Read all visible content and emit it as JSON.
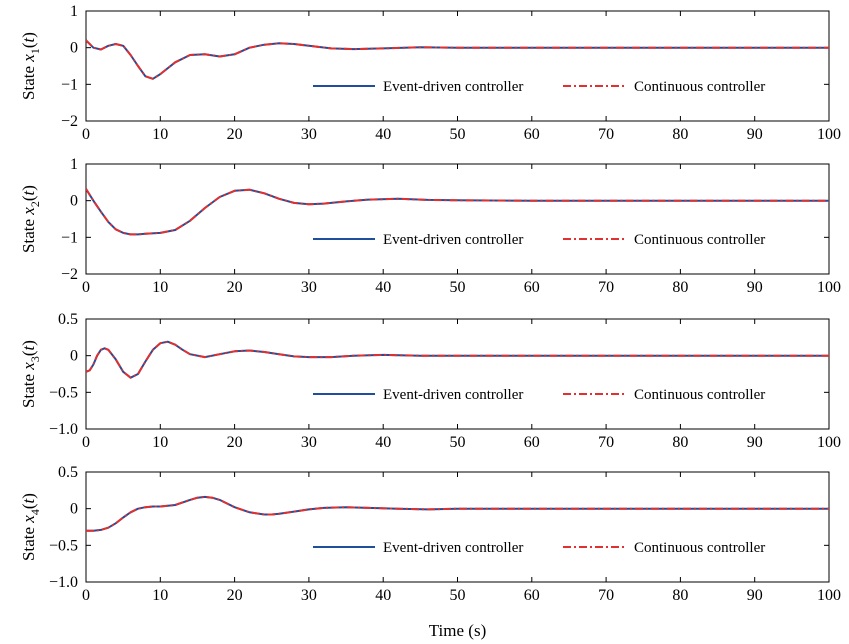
{
  "chart_data": [
    {
      "type": "line",
      "ylabel_prefix": "State ",
      "ylabel_var": "x",
      "ylabel_sub": "1",
      "ylabel_suffix": "(t)",
      "xlim": [
        0,
        100
      ],
      "ylim": [
        -2,
        1
      ],
      "xticks": [
        0,
        10,
        20,
        30,
        40,
        50,
        60,
        70,
        80,
        90,
        100
      ],
      "yticks": [
        -2,
        -1,
        0,
        1
      ],
      "ytick_labels": [
        "−2",
        "−1",
        "0",
        "1"
      ],
      "legend_position": "center-right",
      "series": [
        {
          "name": "Event-driven controller",
          "color": "#1f4e9c",
          "style": "solid",
          "x": [
            0,
            1,
            2,
            3,
            4,
            5,
            6,
            7,
            8,
            9,
            10,
            12,
            14,
            16,
            18,
            20,
            22,
            24,
            26,
            28,
            30,
            33,
            36,
            40,
            45,
            50,
            60,
            70,
            80,
            90,
            100
          ],
          "y": [
            0.2,
            0.0,
            -0.05,
            0.05,
            0.1,
            0.05,
            -0.2,
            -0.5,
            -0.78,
            -0.85,
            -0.72,
            -0.4,
            -0.2,
            -0.18,
            -0.24,
            -0.18,
            0.0,
            0.08,
            0.12,
            0.1,
            0.05,
            -0.02,
            -0.04,
            -0.02,
            0.01,
            0.0,
            0.0,
            0.0,
            0.0,
            0.0,
            0.0
          ]
        },
        {
          "name": "Continuous controller",
          "color": "#e03030",
          "style": "dashdot",
          "x": [
            0,
            1,
            2,
            3,
            4,
            5,
            6,
            7,
            8,
            9,
            10,
            12,
            14,
            16,
            18,
            20,
            22,
            24,
            26,
            28,
            30,
            33,
            36,
            40,
            45,
            50,
            60,
            70,
            80,
            90,
            100
          ],
          "y": [
            0.2,
            0.0,
            -0.05,
            0.05,
            0.1,
            0.05,
            -0.2,
            -0.5,
            -0.78,
            -0.85,
            -0.72,
            -0.4,
            -0.2,
            -0.18,
            -0.24,
            -0.18,
            0.0,
            0.08,
            0.12,
            0.1,
            0.05,
            -0.02,
            -0.04,
            -0.02,
            0.01,
            0.0,
            0.0,
            0.0,
            0.0,
            0.0,
            0.0
          ]
        }
      ]
    },
    {
      "type": "line",
      "ylabel_prefix": "State ",
      "ylabel_var": "x",
      "ylabel_sub": "2",
      "ylabel_suffix": "(t)",
      "xlim": [
        0,
        100
      ],
      "ylim": [
        -2,
        1
      ],
      "xticks": [
        0,
        10,
        20,
        30,
        40,
        50,
        60,
        70,
        80,
        90,
        100
      ],
      "yticks": [
        -2,
        -1,
        0,
        1
      ],
      "ytick_labels": [
        "−2",
        "−1",
        "0",
        "1"
      ],
      "legend_position": "bottom-right",
      "series": [
        {
          "name": "Event-driven controller",
          "color": "#1f4e9c",
          "style": "solid",
          "x": [
            0,
            1,
            2,
            3,
            4,
            5,
            6,
            7,
            8,
            10,
            12,
            14,
            16,
            18,
            20,
            22,
            24,
            26,
            28,
            30,
            32,
            35,
            38,
            42,
            46,
            50,
            60,
            70,
            80,
            90,
            100
          ],
          "y": [
            0.32,
            0.0,
            -0.3,
            -0.58,
            -0.78,
            -0.88,
            -0.92,
            -0.92,
            -0.9,
            -0.88,
            -0.8,
            -0.55,
            -0.2,
            0.1,
            0.27,
            0.3,
            0.2,
            0.05,
            -0.06,
            -0.1,
            -0.08,
            -0.02,
            0.03,
            0.05,
            0.02,
            0.01,
            0.0,
            0.0,
            0.0,
            0.0,
            0.0
          ]
        },
        {
          "name": "Continuous controller",
          "color": "#e03030",
          "style": "dashdot",
          "x": [
            0,
            1,
            2,
            3,
            4,
            5,
            6,
            7,
            8,
            10,
            12,
            14,
            16,
            18,
            20,
            22,
            24,
            26,
            28,
            30,
            32,
            35,
            38,
            42,
            46,
            50,
            60,
            70,
            80,
            90,
            100
          ],
          "y": [
            0.32,
            0.0,
            -0.3,
            -0.58,
            -0.78,
            -0.88,
            -0.92,
            -0.92,
            -0.9,
            -0.88,
            -0.8,
            -0.55,
            -0.2,
            0.1,
            0.27,
            0.3,
            0.2,
            0.05,
            -0.06,
            -0.1,
            -0.08,
            -0.02,
            0.03,
            0.05,
            0.02,
            0.01,
            0.0,
            0.0,
            0.0,
            0.0,
            0.0
          ]
        }
      ]
    },
    {
      "type": "line",
      "ylabel_prefix": "State ",
      "ylabel_var": "x",
      "ylabel_sub": "3",
      "ylabel_suffix": "(t)",
      "xlim": [
        0,
        100
      ],
      "ylim": [
        -1,
        0.5
      ],
      "xticks": [
        0,
        10,
        20,
        30,
        40,
        50,
        60,
        70,
        80,
        90,
        100
      ],
      "yticks": [
        -1,
        -0.5,
        0,
        0.5
      ],
      "ytick_labels": [
        "−1.0",
        "−0.5",
        "0",
        "0.5"
      ],
      "legend_position": "bottom-right",
      "series": [
        {
          "name": "Event-driven controller",
          "color": "#1f4e9c",
          "style": "solid",
          "x": [
            0,
            0.5,
            1,
            1.5,
            2,
            2.5,
            3,
            4,
            5,
            6,
            7,
            8,
            9,
            10,
            11,
            12,
            13,
            14,
            16,
            18,
            20,
            22,
            24,
            26,
            28,
            30,
            33,
            36,
            40,
            45,
            50,
            60,
            70,
            80,
            90,
            100
          ],
          "y": [
            -0.22,
            -0.2,
            -0.12,
            0.0,
            0.08,
            0.1,
            0.08,
            -0.05,
            -0.22,
            -0.3,
            -0.25,
            -0.08,
            0.08,
            0.17,
            0.19,
            0.15,
            0.08,
            0.02,
            -0.02,
            0.02,
            0.06,
            0.07,
            0.05,
            0.02,
            -0.01,
            -0.02,
            -0.02,
            0.0,
            0.01,
            0.0,
            0.0,
            0.0,
            0.0,
            0.0,
            0.0,
            0.0
          ]
        },
        {
          "name": "Continuous controller",
          "color": "#e03030",
          "style": "dashdot",
          "x": [
            0,
            0.5,
            1,
            1.5,
            2,
            2.5,
            3,
            4,
            5,
            6,
            7,
            8,
            9,
            10,
            11,
            12,
            13,
            14,
            16,
            18,
            20,
            22,
            24,
            26,
            28,
            30,
            33,
            36,
            40,
            45,
            50,
            60,
            70,
            80,
            90,
            100
          ],
          "y": [
            -0.22,
            -0.2,
            -0.12,
            0.0,
            0.08,
            0.1,
            0.08,
            -0.05,
            -0.22,
            -0.3,
            -0.25,
            -0.08,
            0.08,
            0.17,
            0.19,
            0.15,
            0.08,
            0.02,
            -0.02,
            0.02,
            0.06,
            0.07,
            0.05,
            0.02,
            -0.01,
            -0.02,
            -0.02,
            0.0,
            0.01,
            0.0,
            0.0,
            0.0,
            0.0,
            0.0,
            0.0,
            0.0
          ]
        }
      ]
    },
    {
      "type": "line",
      "ylabel_prefix": "State ",
      "ylabel_var": "x",
      "ylabel_sub": "4",
      "ylabel_suffix": "(t)",
      "xlabel": "Time (s)",
      "xlim": [
        0,
        100
      ],
      "ylim": [
        -1,
        0.5
      ],
      "xticks": [
        0,
        10,
        20,
        30,
        40,
        50,
        60,
        70,
        80,
        90,
        100
      ],
      "yticks": [
        -1,
        -0.5,
        0,
        0.5
      ],
      "ytick_labels": [
        "−1.0",
        "−0.5",
        "0",
        "0.5"
      ],
      "legend_position": "bottom-right",
      "series": [
        {
          "name": "Event-driven controller",
          "color": "#1f4e9c",
          "style": "solid",
          "x": [
            0,
            1,
            2,
            3,
            4,
            5,
            6,
            7,
            8,
            9,
            10,
            12,
            14,
            15,
            16,
            17,
            18,
            20,
            22,
            24,
            25,
            26,
            28,
            30,
            32,
            35,
            38,
            42,
            46,
            50,
            60,
            70,
            80,
            90,
            100
          ],
          "y": [
            -0.3,
            -0.3,
            -0.29,
            -0.26,
            -0.2,
            -0.12,
            -0.05,
            0.0,
            0.02,
            0.03,
            0.03,
            0.05,
            0.12,
            0.15,
            0.16,
            0.15,
            0.12,
            0.02,
            -0.05,
            -0.08,
            -0.08,
            -0.07,
            -0.04,
            -0.01,
            0.01,
            0.02,
            0.01,
            0.0,
            -0.01,
            0.0,
            0.0,
            0.0,
            0.0,
            0.0,
            0.0
          ]
        },
        {
          "name": "Continuous controller",
          "color": "#e03030",
          "style": "dashdot",
          "x": [
            0,
            1,
            2,
            3,
            4,
            5,
            6,
            7,
            8,
            9,
            10,
            12,
            14,
            15,
            16,
            17,
            18,
            20,
            22,
            24,
            25,
            26,
            28,
            30,
            32,
            35,
            38,
            42,
            46,
            50,
            60,
            70,
            80,
            90,
            100
          ],
          "y": [
            -0.3,
            -0.3,
            -0.29,
            -0.26,
            -0.2,
            -0.12,
            -0.05,
            0.0,
            0.02,
            0.03,
            0.03,
            0.05,
            0.12,
            0.15,
            0.16,
            0.15,
            0.12,
            0.02,
            -0.05,
            -0.08,
            -0.08,
            -0.07,
            -0.04,
            -0.01,
            0.01,
            0.02,
            0.01,
            0.0,
            -0.01,
            0.0,
            0.0,
            0.0,
            0.0,
            0.0,
            0.0
          ]
        }
      ]
    }
  ]
}
